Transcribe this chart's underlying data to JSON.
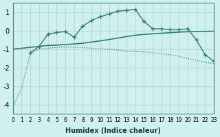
{
  "xlabel": "Humidex (Indice chaleur)",
  "background_color": "#cff0ee",
  "grid_color": "#b8dbd8",
  "line_color": "#2e7d6e",
  "xlim": [
    0,
    23
  ],
  "ylim": [
    -4.5,
    1.5
  ],
  "yticks": [
    -4,
    -3,
    -2,
    -1,
    0,
    1
  ],
  "xticks": [
    0,
    1,
    2,
    3,
    4,
    5,
    6,
    7,
    8,
    9,
    10,
    11,
    12,
    13,
    14,
    15,
    16,
    17,
    18,
    19,
    20,
    21,
    22,
    23
  ],
  "curve1_x": [
    2,
    3,
    4,
    5,
    6,
    7,
    8,
    9,
    10,
    11,
    12,
    13,
    14,
    15,
    16,
    17,
    18,
    19,
    20,
    21,
    22,
    23
  ],
  "curve1_y": [
    -1.2,
    -0.85,
    -0.2,
    -0.1,
    -0.05,
    -0.35,
    0.25,
    0.55,
    0.75,
    0.9,
    1.05,
    1.1,
    1.15,
    0.5,
    0.1,
    0.1,
    0.05,
    0.05,
    0.1,
    -0.5,
    -1.3,
    -1.65
  ],
  "curve2_x": [
    0,
    1,
    2,
    3,
    4,
    5,
    6,
    7,
    8,
    9,
    10,
    11,
    12,
    13,
    14,
    15,
    16,
    17,
    18,
    19,
    20,
    21,
    22,
    23
  ],
  "curve2_y": [
    -1.0,
    -0.95,
    -0.9,
    -0.85,
    -0.8,
    -0.78,
    -0.75,
    -0.72,
    -0.68,
    -0.62,
    -0.55,
    -0.48,
    -0.4,
    -0.32,
    -0.25,
    -0.2,
    -0.17,
    -0.14,
    -0.11,
    -0.08,
    -0.06,
    -0.05,
    -0.04,
    -0.03
  ],
  "curve3_x": [
    0,
    1,
    2,
    3,
    4,
    5,
    6,
    7,
    8,
    9,
    10,
    11,
    12,
    13,
    14,
    15,
    16,
    17,
    18,
    19,
    20,
    21,
    22,
    23
  ],
  "curve3_y": [
    -4.1,
    -3.1,
    -1.2,
    -1.0,
    -0.95,
    -0.9,
    -0.88,
    -0.9,
    -0.92,
    -0.95,
    -0.98,
    -1.0,
    -1.05,
    -1.1,
    -1.12,
    -1.15,
    -1.2,
    -1.25,
    -1.3,
    -1.38,
    -1.5,
    -1.6,
    -1.7,
    -1.78
  ]
}
